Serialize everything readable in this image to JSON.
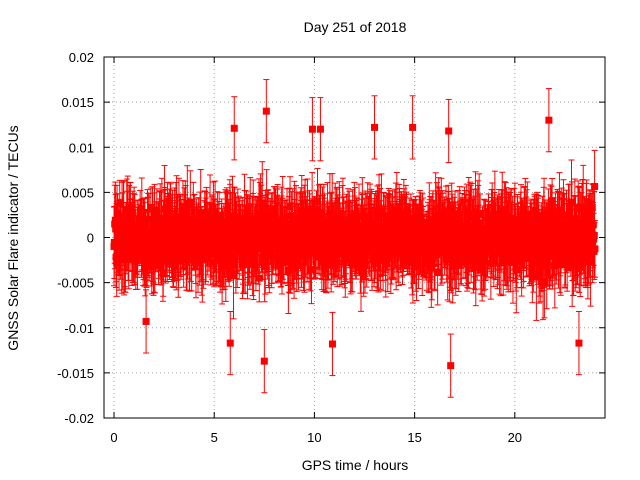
{
  "chart_data": {
    "type": "scatter",
    "title": "Day 251 of 2018",
    "xlabel": "GPS time / hours",
    "ylabel": "GNSS Solar Flare indicator / TECUs",
    "xlim": [
      -0.5,
      24.5
    ],
    "ylim": [
      -0.02,
      0.02
    ],
    "xticks": [
      0,
      5,
      10,
      15,
      20
    ],
    "yticks": [
      -0.02,
      -0.015,
      -0.01,
      -0.005,
      0,
      0.005,
      0.01,
      0.015,
      0.02
    ],
    "x_tick_labels": [
      "0",
      "5",
      "10",
      "15",
      "20"
    ],
    "y_tick_labels": [
      "-0.02",
      "-0.015",
      "-0.01",
      "-0.005",
      "0",
      "0.005",
      "0.01",
      "0.015",
      "0.02"
    ],
    "grid": true,
    "marker": "square",
    "error_bars": true,
    "series": [
      {
        "name": "GNSS Solar Flare indicator",
        "color": "#ff0000",
        "sample_interval_hours": 0.0167,
        "start_hour": 0,
        "end_hour": 24,
        "typical_spread": 0.0045,
        "typical_error": 0.0035,
        "x": [
          7.6,
          9.9,
          10.3,
          13.0,
          14.9,
          16.7,
          21.7,
          6.0,
          10.9,
          16.8,
          5.8,
          7.5,
          23.2,
          1.6
        ],
        "y": [
          0.014,
          0.012,
          0.012,
          0.0122,
          0.0122,
          0.0118,
          0.013,
          0.0121,
          -0.0118,
          -0.0142,
          -0.0117,
          -0.0137,
          -0.0117,
          -0.0093
        ]
      }
    ]
  }
}
